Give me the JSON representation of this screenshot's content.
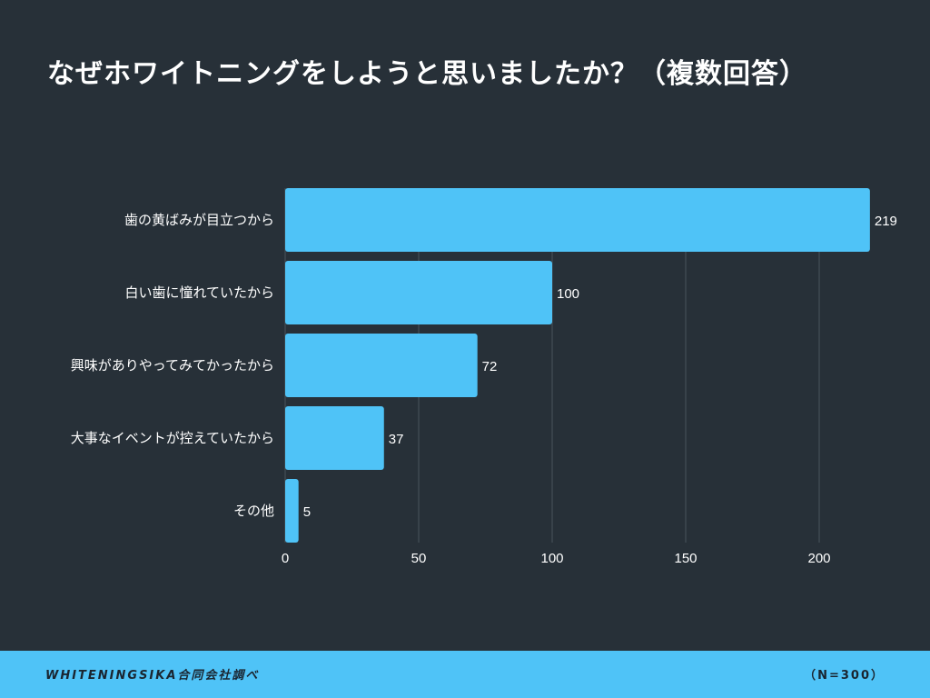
{
  "chart_data": {
    "type": "bar",
    "orientation": "horizontal",
    "title": "なぜホワイトニングをしようと思いましたか？（複数回答）",
    "categories": [
      "歯の黄ばみが目立つから",
      "白い歯に憧れていたから",
      "興味がありやってみてかったから",
      "大事なイベントが控えていたから",
      "その他"
    ],
    "values": [
      219,
      100,
      72,
      37,
      5
    ],
    "xlim": [
      0,
      220
    ],
    "xticks": [
      0,
      50,
      100,
      150,
      200
    ],
    "grid": true,
    "bar_color": "#4fc3f7",
    "background": "#273038"
  },
  "footer": {
    "source": "WHITENINGSIKA合同会社調べ",
    "sample": "（N=300）"
  }
}
